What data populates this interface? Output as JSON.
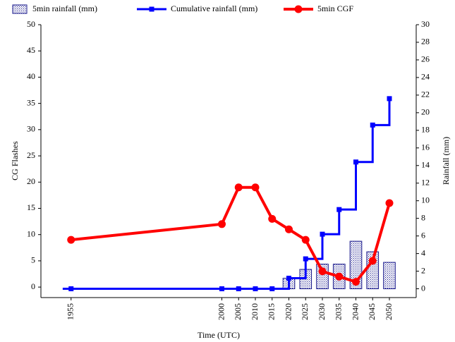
{
  "chart_data": {
    "type": "combo",
    "x_label": "Time (UTC)",
    "y_label": "CG Flashes",
    "y2_label": "Rainfall (mm)",
    "x": [
      1955,
      2000,
      2005,
      2010,
      2015,
      2020,
      2025,
      2030,
      2035,
      2040,
      2045,
      2050
    ],
    "xlim": [
      1946,
      2058
    ],
    "ylim": [
      -2,
      50
    ],
    "yticks": [
      0,
      5,
      10,
      15,
      20,
      25,
      30,
      35,
      40,
      45,
      50
    ],
    "y2lim": [
      -1,
      30
    ],
    "y2ticks": [
      0,
      2,
      4,
      6,
      8,
      10,
      12,
      14,
      16,
      18,
      20,
      22,
      24,
      26,
      28,
      30
    ],
    "series": [
      {
        "name": "5min rainfall (mm)",
        "type": "bar",
        "axis": "y2",
        "color": "#1a1a8c",
        "values": [
          0,
          0,
          0,
          0,
          0,
          1.2,
          2.2,
          2.8,
          2.8,
          5.4,
          4.2,
          3.0
        ]
      },
      {
        "name": "Cumulative rainfall (mm)",
        "type": "step",
        "axis": "y2",
        "color": "#0000ff",
        "values": [
          0,
          0,
          0,
          0,
          0,
          1.2,
          3.4,
          6.2,
          9.0,
          14.4,
          18.6,
          21.6
        ]
      },
      {
        "name": "5min CGF",
        "type": "line",
        "axis": "y",
        "color": "#ff0000",
        "values": [
          9,
          12,
          19,
          19,
          13,
          11,
          9,
          3,
          2,
          1,
          5,
          16
        ]
      }
    ]
  }
}
